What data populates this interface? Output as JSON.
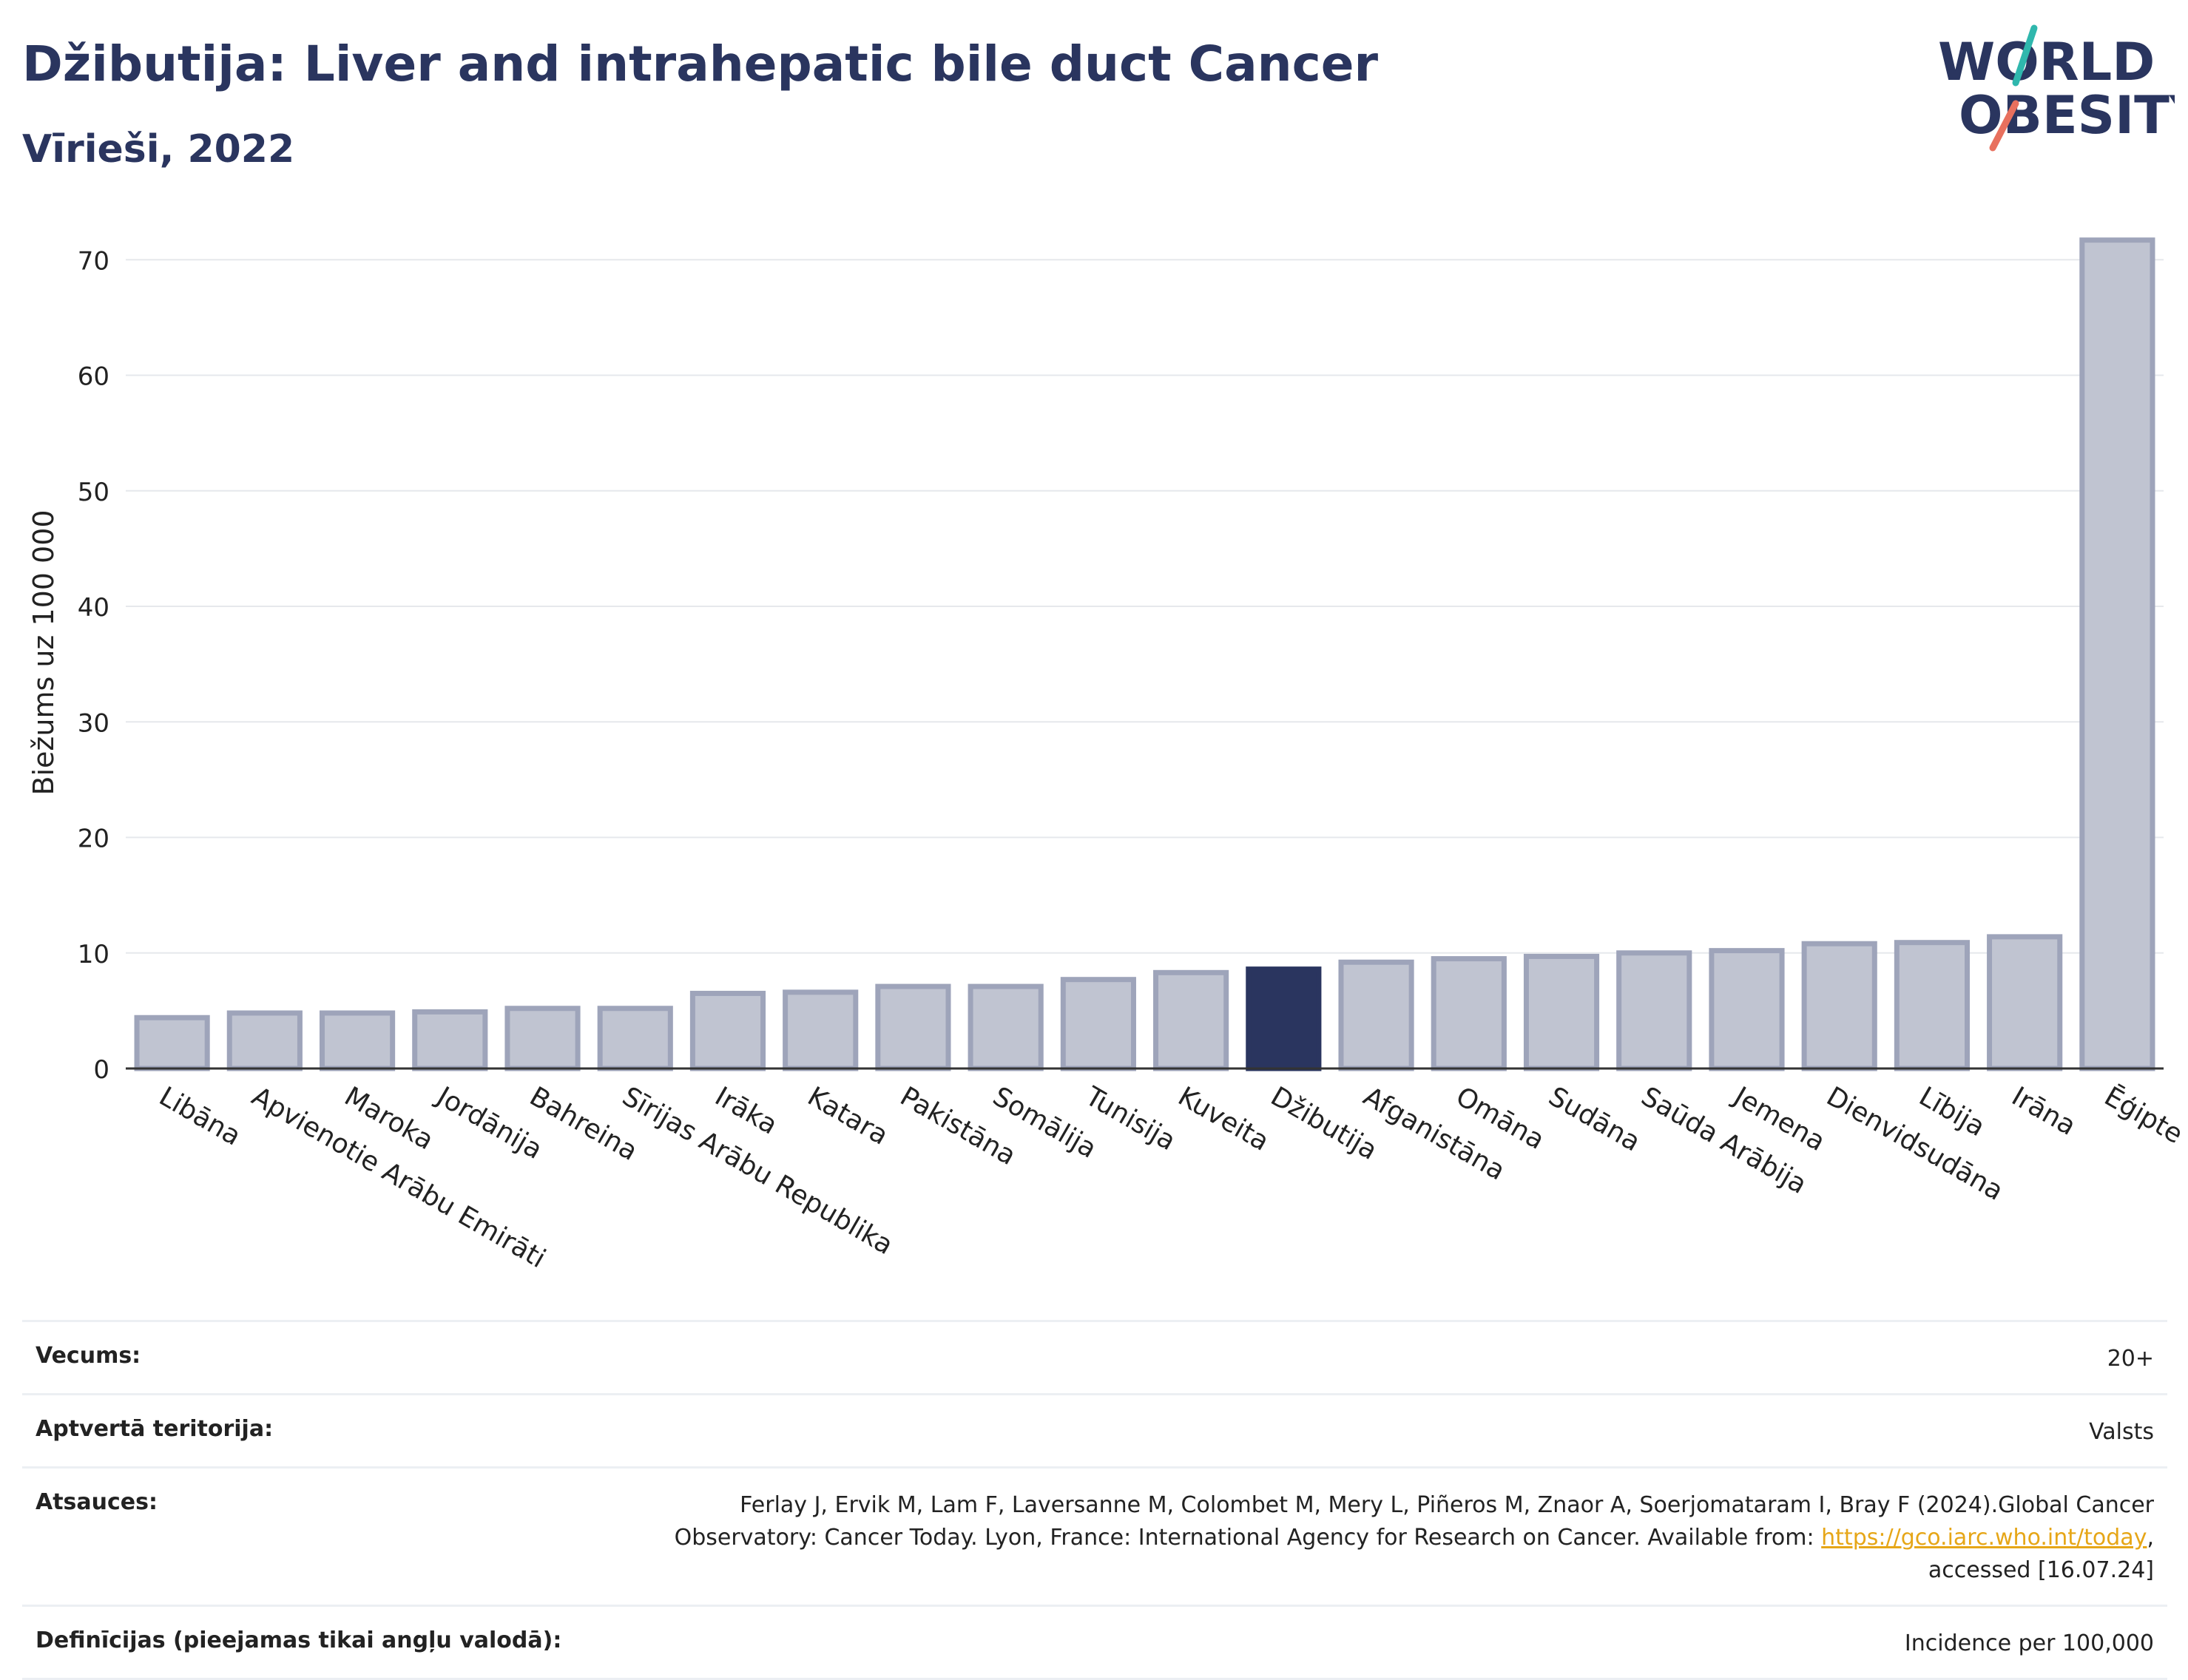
{
  "header": {
    "title": "Džibutija: Liver and intrahepatic bile duct Cancer",
    "subtitle": "Vīrieši, 2022"
  },
  "logo": {
    "line1": "WORLD",
    "line2": "OBESITY",
    "icon": "world-obesity-logo"
  },
  "chart_data": {
    "type": "bar",
    "ylabel": "Biežums uz 100 000",
    "ylim": [
      0,
      72
    ],
    "yticks": [
      0,
      10,
      20,
      30,
      40,
      50,
      60,
      70
    ],
    "grid": true,
    "highlight": "Džibutija",
    "categories": [
      "Libāna",
      "Apvienotie Arābu Emirāti",
      "Maroka",
      "Jordānija",
      "Bahreina",
      "Sīrijas Arābu Republika",
      "Irāka",
      "Katara",
      "Pakistāna",
      "Somālija",
      "Tunisija",
      "Kuveita",
      "Džibutija",
      "Afganistāna",
      "Omāna",
      "Sudāna",
      "Saūda Arābija",
      "Jemena",
      "Dienvidsudāna",
      "Lībija",
      "Irāna",
      "Ēģipte"
    ],
    "values": [
      4.4,
      4.8,
      4.8,
      4.9,
      5.2,
      5.2,
      6.5,
      6.6,
      7.1,
      7.1,
      7.7,
      8.3,
      8.6,
      9.2,
      9.5,
      9.7,
      10.0,
      10.2,
      10.8,
      10.9,
      11.4,
      71.7
    ],
    "colors": {
      "bar": "#c0c4d1",
      "bar_border": "#9ea4ba",
      "highlight": "#2a355f"
    }
  },
  "info": {
    "age_label": "Vecums:",
    "age_value": "20+",
    "coverage_label": "Aptvertā teritorija:",
    "coverage_value": "Valsts",
    "references_label": "Atsauces:",
    "references_line1": "Ferlay J, Ervik M, Lam F, Laversanne M, Colombet M, Mery L, Piñeros M, Znaor A, Soerjomataram I, Bray F (2024).Global Cancer",
    "references_line2": "Observatory: Cancer Today. Lyon, France: International Agency for Research on Cancer. Available from: ",
    "references_link": "https://gco.iarc.who.int/today",
    "references_line2_end": ",",
    "references_line3": "accessed [16.07.24]",
    "definitions_label": "Definīcijas (pieejamas tikai angļu valodā):",
    "definitions_value": "Incidence per 100,000"
  }
}
